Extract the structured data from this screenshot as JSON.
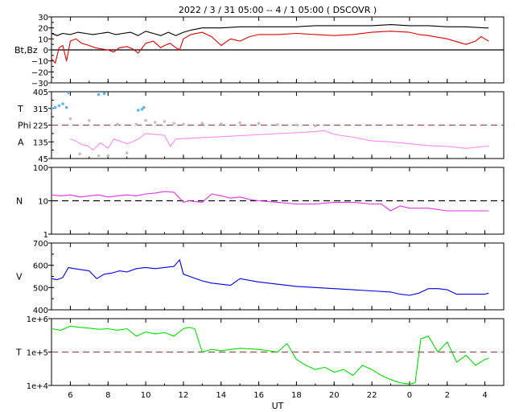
{
  "chart_data": {
    "type": "line",
    "title": "2022 /  3 / 31   05:00 --  4 /  1   05:00 ( DSCOVR )",
    "xlabel": "UT",
    "x_range_hours": [
      5,
      29
    ],
    "x_ticks": [
      {
        "h": 6,
        "label": "6"
      },
      {
        "h": 8,
        "label": "8"
      },
      {
        "h": 10,
        "label": "10"
      },
      {
        "h": 12,
        "label": "12"
      },
      {
        "h": 14,
        "label": "14"
      },
      {
        "h": 16,
        "label": "16"
      },
      {
        "h": 18,
        "label": "18"
      },
      {
        "h": 20,
        "label": "20"
      },
      {
        "h": 22,
        "label": "22"
      },
      {
        "h": 24,
        "label": "0"
      },
      {
        "h": 26,
        "label": "2"
      },
      {
        "h": 28,
        "label": "4"
      }
    ],
    "panels": [
      {
        "id": "mag",
        "ylabel": "Bt,Bz",
        "scale": "linear",
        "ylim": [
          -30,
          30
        ],
        "yticks": [
          {
            "v": 30,
            "label": "30"
          },
          {
            "v": 20,
            "label": "20"
          },
          {
            "v": 10,
            "label": "10"
          },
          {
            "v": 0,
            "label": "0"
          },
          {
            "v": -10,
            "label": "−10"
          },
          {
            "v": -20,
            "label": "−20"
          },
          {
            "v": -30,
            "label": "−30"
          }
        ],
        "reference_line": {
          "value": 0,
          "style": "solid",
          "color": "#000000"
        },
        "series": [
          {
            "name": "Bt",
            "color": "#000000",
            "x": [
              5.0,
              5.3,
              5.6,
              6.0,
              6.4,
              6.8,
              7.2,
              7.6,
              8.0,
              8.4,
              8.8,
              9.2,
              9.6,
              10.0,
              10.4,
              10.8,
              11.2,
              11.6,
              12.0,
              12.4,
              13.0,
              14.0,
              15.0,
              16.0,
              17.0,
              18.0,
              19.0,
              20.0,
              21.0,
              22.0,
              23.0,
              24.0,
              25.0,
              26.0,
              27.0,
              28.0,
              28.2
            ],
            "y": [
              15,
              13,
              15,
              14,
              16,
              15,
              14,
              15,
              16,
              14,
              15,
              16,
              13,
              17,
              15,
              13,
              16,
              13,
              16,
              18,
              20,
              20,
              21,
              21,
              21,
              21,
              22,
              22,
              22,
              22,
              23,
              22,
              22,
              21,
              21,
              20,
              20
            ]
          },
          {
            "name": "Bz",
            "color": "#e00000",
            "x": [
              5.0,
              5.2,
              5.4,
              5.6,
              5.8,
              6.0,
              6.3,
              6.6,
              7.0,
              7.3,
              7.6,
              8.0,
              8.3,
              8.6,
              9.0,
              9.3,
              9.6,
              10.0,
              10.4,
              10.8,
              11.0,
              11.3,
              11.6,
              11.8,
              12.0,
              12.4,
              13.0,
              13.5,
              14.0,
              14.5,
              15.0,
              15.5,
              16.0,
              17.0,
              18.0,
              19.0,
              20.0,
              21.0,
              22.0,
              23.0,
              24.0,
              24.5,
              25.0,
              26.0,
              27.0,
              27.5,
              27.8,
              28.0,
              28.2
            ],
            "y": [
              -8,
              -12,
              2,
              4,
              -10,
              8,
              10,
              6,
              4,
              2,
              1,
              0,
              -2,
              2,
              3,
              1,
              -3,
              6,
              8,
              2,
              4,
              6,
              2,
              0,
              10,
              14,
              16,
              12,
              4,
              10,
              8,
              12,
              14,
              14,
              15,
              14,
              13,
              14,
              16,
              17,
              16,
              14,
              13,
              10,
              5,
              8,
              12,
              10,
              8
            ]
          }
        ]
      },
      {
        "id": "angle",
        "ylabel_lines": [
          "T",
          "Phi",
          "A"
        ],
        "scale": "linear",
        "ylim": [
          45,
          405
        ],
        "yticks": [
          {
            "v": 405,
            "label": "405"
          },
          {
            "v": 315,
            "label": "315"
          },
          {
            "v": 225,
            "label": "225"
          },
          {
            "v": 135,
            "label": "135"
          },
          {
            "v": 45,
            "label": "45"
          }
        ],
        "reference_line": {
          "value": 225,
          "style": "dashed",
          "color": "#9a4a4a"
        },
        "series": [
          {
            "name": "Phi",
            "style": "dots",
            "color": "#5ab8e8",
            "x": [
              5.0,
              5.2,
              5.4,
              5.6,
              5.8,
              5.9,
              7.5,
              7.8,
              9.6,
              9.8,
              9.9
            ],
            "y": [
              315,
              320,
              330,
              340,
              320,
              400,
              390,
              395,
              305,
              310,
              320
            ]
          },
          {
            "name": "Phi",
            "style": "dots",
            "color": "#c0c0c0",
            "x": [
              6.0,
              6.5,
              7.0,
              7.5,
              8.0,
              8.5,
              9.0,
              9.5,
              10.0,
              10.5,
              11.0,
              11.5,
              12.0,
              13.0,
              14.0,
              15.0,
              16.0,
              17.0,
              18.0,
              19.0
            ],
            "y": [
              260,
              70,
              250,
              60,
              60,
              230,
              75,
              230,
              250,
              240,
              245,
              235,
              230,
              235,
              232,
              238,
              235,
              228,
              225,
              220
            ]
          },
          {
            "name": "Phi",
            "style": "line",
            "color": "#ff88ee",
            "x": [
              6.0,
              6.3,
              6.6,
              6.9,
              7.2,
              7.6,
              8.0,
              8.3,
              8.6,
              9.0,
              9.3,
              9.6,
              10.0,
              11.0,
              11.3,
              11.6,
              19.0,
              19.5,
              20.0,
              21.0,
              22.0,
              23.0,
              24.0,
              25.0,
              26.0,
              27.0,
              28.0,
              28.2
            ],
            "y": [
              150,
              140,
              120,
              115,
              90,
              130,
              100,
              150,
              140,
              125,
              135,
              150,
              180,
              170,
              110,
              150,
              190,
              195,
              175,
              160,
              140,
              135,
              125,
              115,
              110,
              100,
              110,
              112
            ]
          }
        ]
      },
      {
        "id": "density",
        "ylabel": "N",
        "scale": "log",
        "ylim": [
          1,
          100
        ],
        "yticks": [
          {
            "v": 100,
            "label": "100"
          },
          {
            "v": 10,
            "label": "10"
          },
          {
            "v": 1,
            "label": "1"
          }
        ],
        "reference_line": {
          "value": 10,
          "style": "dashed",
          "color": "#000000"
        },
        "series": [
          {
            "name": "N",
            "color": "#e030e0",
            "x": [
              5.0,
              5.5,
              6.0,
              6.5,
              7.0,
              7.5,
              8.0,
              8.5,
              9.0,
              9.5,
              10.0,
              10.5,
              11.0,
              11.5,
              12.0,
              12.3,
              13.0,
              13.5,
              14.0,
              14.5,
              15.0,
              15.5,
              16.0,
              17.0,
              18.0,
              19.0,
              20.0,
              21.0,
              22.0,
              22.5,
              23.0,
              23.5,
              24.0,
              25.0,
              26.0,
              27.0,
              28.0,
              28.2
            ],
            "y": [
              15,
              14,
              15,
              13,
              14,
              15,
              13,
              14,
              15,
              14,
              16,
              17,
              19,
              18,
              9,
              10,
              9,
              16,
              14,
              12,
              13,
              11,
              10,
              9,
              8,
              8,
              9,
              9,
              8,
              8,
              5,
              7,
              6,
              6,
              5,
              5,
              5,
              5
            ]
          }
        ]
      },
      {
        "id": "speed",
        "ylabel": "V",
        "scale": "linear",
        "ylim": [
          400,
          700
        ],
        "yticks": [
          {
            "v": 700,
            "label": "700"
          },
          {
            "v": 600,
            "label": "600"
          },
          {
            "v": 500,
            "label": "500"
          },
          {
            "v": 400,
            "label": "400"
          }
        ],
        "series": [
          {
            "name": "V",
            "color": "#0000e0",
            "x": [
              5.0,
              5.3,
              5.6,
              5.9,
              6.2,
              6.6,
              7.0,
              7.4,
              7.8,
              8.2,
              8.6,
              9.0,
              9.5,
              10.0,
              10.5,
              11.0,
              11.5,
              11.8,
              12.0,
              12.5,
              13.0,
              13.5,
              14.0,
              14.5,
              15.0,
              16.0,
              17.0,
              18.0,
              19.0,
              20.0,
              21.0,
              22.0,
              23.0,
              23.5,
              24.0,
              24.5,
              25.0,
              25.5,
              26.0,
              26.5,
              27.0,
              28.0,
              28.2
            ],
            "y": [
              540,
              535,
              545,
              590,
              585,
              580,
              575,
              540,
              560,
              565,
              575,
              570,
              585,
              590,
              585,
              590,
              595,
              625,
              560,
              545,
              530,
              520,
              515,
              510,
              540,
              525,
              515,
              505,
              500,
              495,
              490,
              485,
              480,
              470,
              465,
              475,
              495,
              495,
              490,
              470,
              470,
              470,
              475
            ]
          }
        ]
      },
      {
        "id": "temperature",
        "ylabel": "T",
        "scale": "log",
        "ylim": [
          10000,
          1000000
        ],
        "yticks": [
          {
            "v": 1000000,
            "label": "1e+6"
          },
          {
            "v": 100000,
            "label": "1e+5"
          },
          {
            "v": 10000,
            "label": "1e+4"
          }
        ],
        "reference_line": {
          "value": 100000,
          "style": "dashed",
          "color": "#9a4a4a"
        },
        "series": [
          {
            "name": "T",
            "color": "#00e000",
            "x": [
              5.0,
              5.5,
              6.0,
              6.5,
              7.0,
              7.5,
              8.0,
              8.5,
              9.0,
              9.5,
              10.0,
              10.5,
              11.0,
              11.5,
              12.0,
              12.3,
              12.6,
              13.0,
              13.5,
              14.0,
              15.0,
              16.0,
              17.0,
              17.5,
              18.0,
              18.5,
              19.0,
              19.5,
              20.0,
              20.5,
              21.0,
              21.5,
              22.0,
              22.5,
              23.0,
              23.5,
              24.0,
              24.3,
              24.6,
              25.0,
              25.5,
              26.0,
              26.5,
              27.0,
              27.5,
              28.0,
              28.2
            ],
            "y": [
              500000,
              450000,
              600000,
              550000,
              520000,
              480000,
              500000,
              450000,
              500000,
              300000,
              400000,
              350000,
              380000,
              300000,
              500000,
              550000,
              500000,
              100000,
              120000,
              110000,
              130000,
              120000,
              100000,
              180000,
              60000,
              40000,
              30000,
              35000,
              25000,
              30000,
              20000,
              40000,
              30000,
              20000,
              15000,
              12000,
              11000,
              12000,
              250000,
              300000,
              100000,
              200000,
              50000,
              80000,
              40000,
              60000,
              65000
            ]
          }
        ]
      }
    ]
  }
}
